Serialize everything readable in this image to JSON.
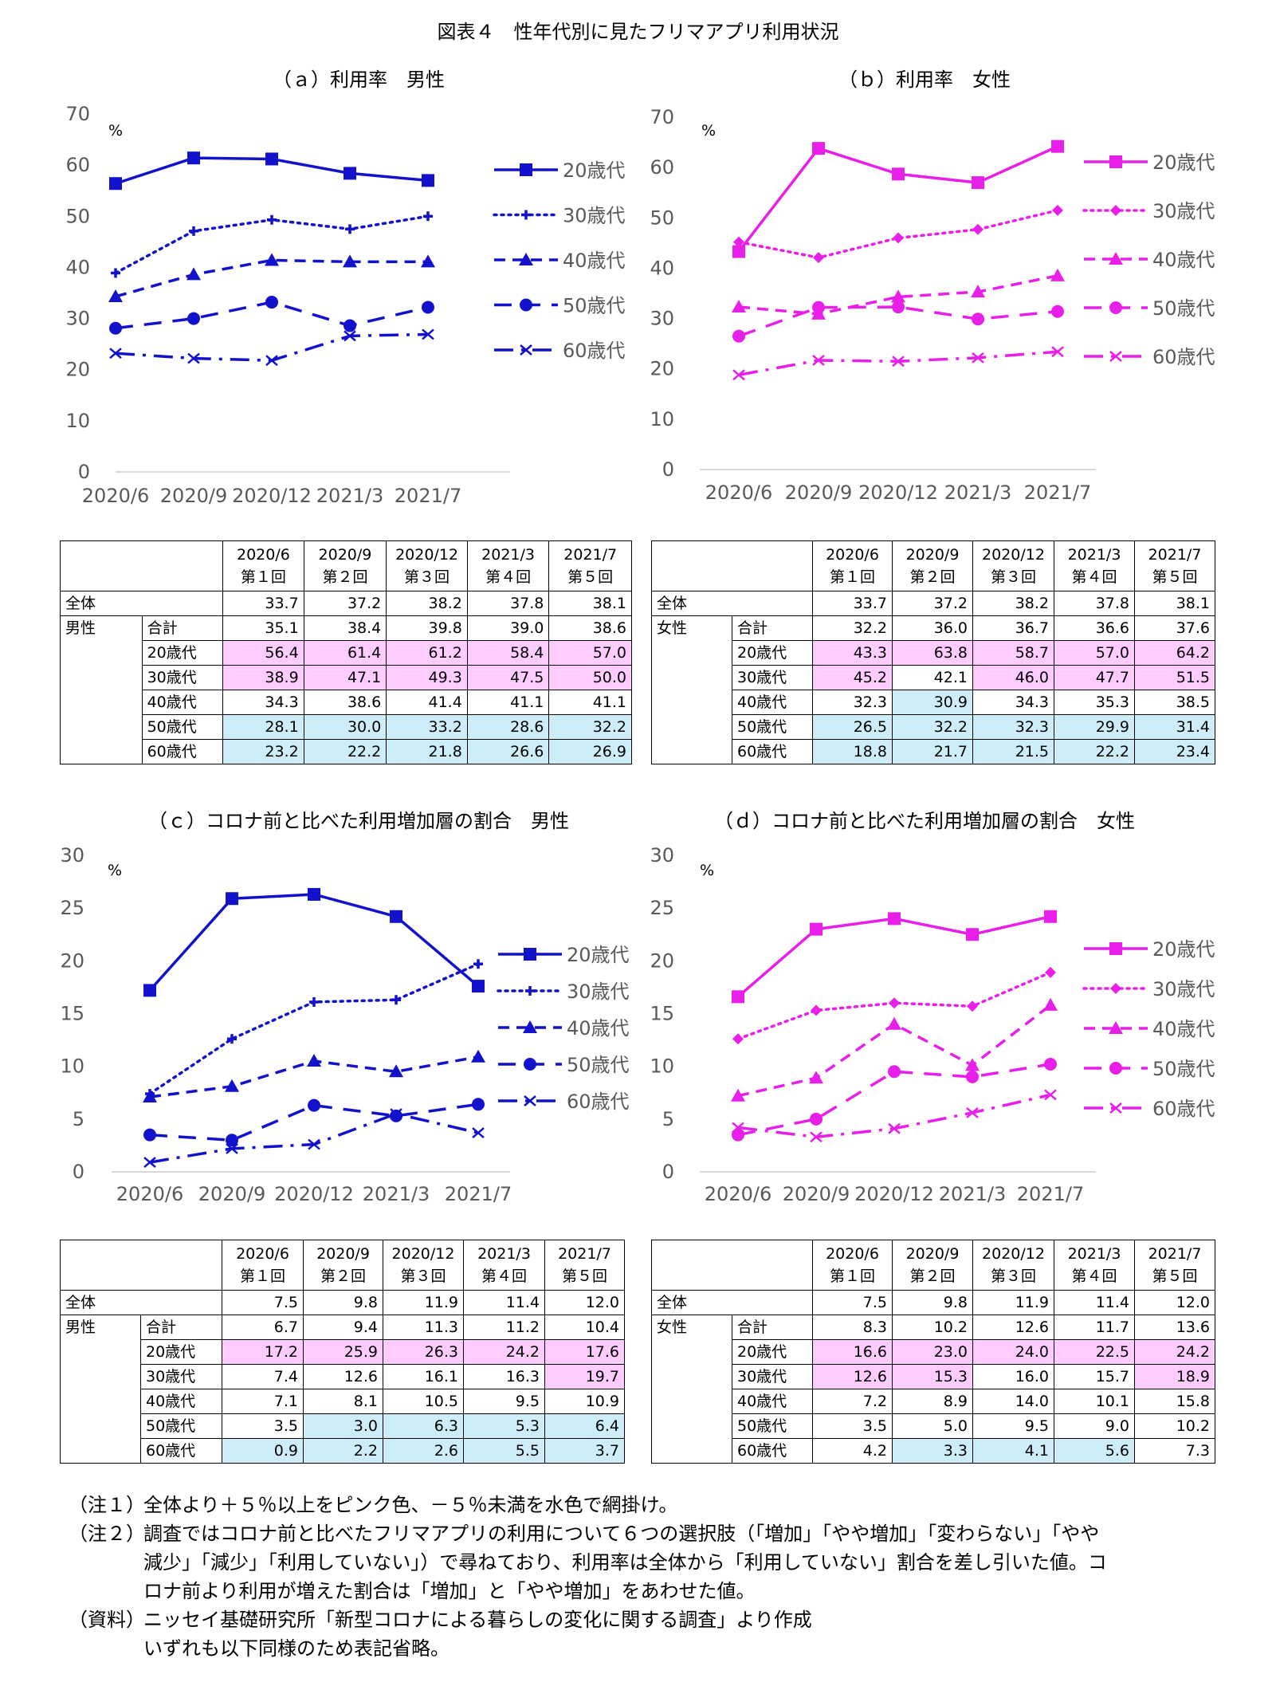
{
  "page_title": "図表４　性年代別に見たフリマアプリ利用状況",
  "colors": {
    "male": "#1212cc",
    "female": "#e81fe8",
    "pink": "#ffccff",
    "blue": "#cdeef8",
    "axis": "#d9d9d9",
    "tick": "#595959"
  },
  "chart_data": [
    {
      "type": "line",
      "title": "（ａ）利用率　男性",
      "ylabel": "%",
      "ylim": [
        0,
        70
      ],
      "yticks": [
        "0",
        "10",
        "20",
        "30",
        "40",
        "50",
        "60",
        "70"
      ],
      "categories": [
        "2020/6",
        "2020/9",
        "2020/12",
        "2021/3",
        "2021/7"
      ],
      "legend": "right",
      "color": "#1212cc",
      "series": [
        {
          "name": "20歳代",
          "marker": "square",
          "dash": "solid",
          "values": [
            56.4,
            61.4,
            61.2,
            58.4,
            57.0
          ]
        },
        {
          "name": "30歳代",
          "marker": "plus",
          "dash": "dot",
          "values": [
            38.9,
            47.1,
            49.3,
            47.5,
            50.0
          ]
        },
        {
          "name": "40歳代",
          "marker": "triangle",
          "dash": "dash",
          "values": [
            34.3,
            38.6,
            41.4,
            41.1,
            41.1
          ]
        },
        {
          "name": "50歳代",
          "marker": "circle",
          "dash": "longdash",
          "values": [
            28.1,
            30.0,
            33.2,
            28.6,
            32.2
          ]
        },
        {
          "name": "60歳代",
          "marker": "x",
          "dash": "dashdot",
          "values": [
            23.2,
            22.2,
            21.8,
            26.6,
            26.9
          ]
        }
      ]
    },
    {
      "type": "line",
      "title": "（ｂ）利用率　女性",
      "ylabel": "%",
      "ylim": [
        0,
        70
      ],
      "yticks": [
        "0",
        "10",
        "20",
        "30",
        "40",
        "50",
        "60",
        "70"
      ],
      "categories": [
        "2020/6",
        "2020/9",
        "2020/12",
        "2021/3",
        "2021/7"
      ],
      "legend": "right",
      "color": "#e81fe8",
      "series": [
        {
          "name": "20歳代",
          "marker": "square",
          "dash": "solid",
          "values": [
            43.3,
            63.8,
            58.7,
            57.0,
            64.2
          ]
        },
        {
          "name": "30歳代",
          "marker": "diamond",
          "dash": "dot",
          "values": [
            45.2,
            42.1,
            46.0,
            47.7,
            51.5
          ]
        },
        {
          "name": "40歳代",
          "marker": "triangle",
          "dash": "dash",
          "values": [
            32.3,
            30.9,
            34.3,
            35.3,
            38.5
          ]
        },
        {
          "name": "50歳代",
          "marker": "circle",
          "dash": "longdash",
          "values": [
            26.5,
            32.2,
            32.3,
            29.9,
            31.4
          ]
        },
        {
          "name": "60歳代",
          "marker": "x",
          "dash": "dashdot",
          "values": [
            18.8,
            21.7,
            21.5,
            22.2,
            23.4
          ]
        }
      ]
    },
    {
      "type": "line",
      "title": "（ｃ）コロナ前と比べた利用増加層の割合　男性",
      "ylabel": "%",
      "ylim": [
        0,
        30
      ],
      "yticks": [
        "0",
        "5",
        "10",
        "15",
        "20",
        "25",
        "30"
      ],
      "categories": [
        "2020/6",
        "2020/9",
        "2020/12",
        "2021/3",
        "2021/7"
      ],
      "legend": "right",
      "color": "#1212cc",
      "series": [
        {
          "name": "20歳代",
          "marker": "square",
          "dash": "solid",
          "values": [
            17.2,
            25.9,
            26.3,
            24.2,
            17.6
          ]
        },
        {
          "name": "30歳代",
          "marker": "plus",
          "dash": "dot",
          "values": [
            7.4,
            12.6,
            16.1,
            16.3,
            19.7
          ]
        },
        {
          "name": "40歳代",
          "marker": "triangle",
          "dash": "dash",
          "values": [
            7.1,
            8.1,
            10.5,
            9.5,
            10.9
          ]
        },
        {
          "name": "50歳代",
          "marker": "circle",
          "dash": "longdash",
          "values": [
            3.5,
            3.0,
            6.3,
            5.3,
            6.4
          ]
        },
        {
          "name": "60歳代",
          "marker": "x",
          "dash": "dashdot",
          "values": [
            0.9,
            2.2,
            2.6,
            5.5,
            3.7
          ]
        }
      ]
    },
    {
      "type": "line",
      "title": "（ｄ）コロナ前と比べた利用増加層の割合　女性",
      "ylabel": "%",
      "ylim": [
        0,
        30
      ],
      "yticks": [
        "0",
        "5",
        "10",
        "15",
        "20",
        "25",
        "30"
      ],
      "categories": [
        "2020/6",
        "2020/9",
        "2020/12",
        "2021/3",
        "2021/7"
      ],
      "legend": "right",
      "color": "#e81fe8",
      "series": [
        {
          "name": "20歳代",
          "marker": "square",
          "dash": "solid",
          "values": [
            16.6,
            23.0,
            24.0,
            22.5,
            24.2
          ]
        },
        {
          "name": "30歳代",
          "marker": "diamond",
          "dash": "dot",
          "values": [
            12.6,
            15.3,
            16.0,
            15.7,
            18.9
          ]
        },
        {
          "name": "40歳代",
          "marker": "triangle",
          "dash": "dash",
          "values": [
            7.2,
            8.9,
            14.0,
            10.1,
            15.8
          ]
        },
        {
          "name": "50歳代",
          "marker": "circle",
          "dash": "longdash",
          "values": [
            3.5,
            5.0,
            9.5,
            9.0,
            10.2
          ]
        },
        {
          "name": "60歳代",
          "marker": "x",
          "dash": "dashdot",
          "values": [
            4.2,
            3.3,
            4.1,
            5.6,
            7.3
          ]
        }
      ]
    }
  ],
  "tables": [
    {
      "header": [
        [
          "2020/6",
          "第１回"
        ],
        [
          "2020/9",
          "第２回"
        ],
        [
          "2020/12",
          "第３回"
        ],
        [
          "2021/3",
          "第４回"
        ],
        [
          "2021/7",
          "第５回"
        ]
      ],
      "overall_label": "全体",
      "overall": [
        "33.7",
        "37.2",
        "38.2",
        "37.8",
        "38.1"
      ],
      "group_label": "男性",
      "rows": [
        {
          "label": "合計",
          "values": [
            "35.1",
            "38.4",
            "39.8",
            "39.0",
            "38.6"
          ],
          "shade": [
            "",
            "",
            "",
            "",
            ""
          ]
        },
        {
          "label": "20歳代",
          "values": [
            "56.4",
            "61.4",
            "61.2",
            "58.4",
            "57.0"
          ],
          "shade": [
            "pink",
            "pink",
            "pink",
            "pink",
            "pink"
          ]
        },
        {
          "label": "30歳代",
          "values": [
            "38.9",
            "47.1",
            "49.3",
            "47.5",
            "50.0"
          ],
          "shade": [
            "pink",
            "pink",
            "pink",
            "pink",
            "pink"
          ]
        },
        {
          "label": "40歳代",
          "values": [
            "34.3",
            "38.6",
            "41.4",
            "41.1",
            "41.1"
          ],
          "shade": [
            "",
            "",
            "",
            "",
            ""
          ]
        },
        {
          "label": "50歳代",
          "values": [
            "28.1",
            "30.0",
            "33.2",
            "28.6",
            "32.2"
          ],
          "shade": [
            "blue",
            "blue",
            "blue",
            "blue",
            "blue"
          ]
        },
        {
          "label": "60歳代",
          "values": [
            "23.2",
            "22.2",
            "21.8",
            "26.6",
            "26.9"
          ],
          "shade": [
            "blue",
            "blue",
            "blue",
            "blue",
            "blue"
          ]
        }
      ]
    },
    {
      "header": [
        [
          "2020/6",
          "第１回"
        ],
        [
          "2020/9",
          "第２回"
        ],
        [
          "2020/12",
          "第３回"
        ],
        [
          "2021/3",
          "第４回"
        ],
        [
          "2021/7",
          "第５回"
        ]
      ],
      "overall_label": "全体",
      "overall": [
        "33.7",
        "37.2",
        "38.2",
        "37.8",
        "38.1"
      ],
      "group_label": "女性",
      "rows": [
        {
          "label": "合計",
          "values": [
            "32.2",
            "36.0",
            "36.7",
            "36.6",
            "37.6"
          ],
          "shade": [
            "",
            "",
            "",
            "",
            ""
          ]
        },
        {
          "label": "20歳代",
          "values": [
            "43.3",
            "63.8",
            "58.7",
            "57.0",
            "64.2"
          ],
          "shade": [
            "pink",
            "pink",
            "pink",
            "pink",
            "pink"
          ]
        },
        {
          "label": "30歳代",
          "values": [
            "45.2",
            "42.1",
            "46.0",
            "47.7",
            "51.5"
          ],
          "shade": [
            "pink",
            "",
            "pink",
            "pink",
            "pink"
          ]
        },
        {
          "label": "40歳代",
          "values": [
            "32.3",
            "30.9",
            "34.3",
            "35.3",
            "38.5"
          ],
          "shade": [
            "",
            "blue",
            "",
            "",
            ""
          ]
        },
        {
          "label": "50歳代",
          "values": [
            "26.5",
            "32.2",
            "32.3",
            "29.9",
            "31.4"
          ],
          "shade": [
            "blue",
            "blue",
            "blue",
            "blue",
            "blue"
          ]
        },
        {
          "label": "60歳代",
          "values": [
            "18.8",
            "21.7",
            "21.5",
            "22.2",
            "23.4"
          ],
          "shade": [
            "blue",
            "blue",
            "blue",
            "blue",
            "blue"
          ]
        }
      ]
    },
    {
      "header": [
        [
          "2020/6",
          "第１回"
        ],
        [
          "2020/9",
          "第２回"
        ],
        [
          "2020/12",
          "第３回"
        ],
        [
          "2021/3",
          "第４回"
        ],
        [
          "2021/7",
          "第５回"
        ]
      ],
      "overall_label": "全体",
      "overall": [
        "7.5",
        "9.8",
        "11.9",
        "11.4",
        "12.0"
      ],
      "group_label": "男性",
      "rows": [
        {
          "label": "合計",
          "values": [
            "6.7",
            "9.4",
            "11.3",
            "11.2",
            "10.4"
          ],
          "shade": [
            "",
            "",
            "",
            "",
            ""
          ]
        },
        {
          "label": "20歳代",
          "values": [
            "17.2",
            "25.9",
            "26.3",
            "24.2",
            "17.6"
          ],
          "shade": [
            "pink",
            "pink",
            "pink",
            "pink",
            "pink"
          ]
        },
        {
          "label": "30歳代",
          "values": [
            "7.4",
            "12.6",
            "16.1",
            "16.3",
            "19.7"
          ],
          "shade": [
            "",
            "",
            "",
            "",
            "pink"
          ]
        },
        {
          "label": "40歳代",
          "values": [
            "7.1",
            "8.1",
            "10.5",
            "9.5",
            "10.9"
          ],
          "shade": [
            "",
            "",
            "",
            "",
            ""
          ]
        },
        {
          "label": "50歳代",
          "values": [
            "3.5",
            "3.0",
            "6.3",
            "5.3",
            "6.4"
          ],
          "shade": [
            "",
            "blue",
            "blue",
            "blue",
            "blue"
          ]
        },
        {
          "label": "60歳代",
          "values": [
            "0.9",
            "2.2",
            "2.6",
            "5.5",
            "3.7"
          ],
          "shade": [
            "blue",
            "blue",
            "blue",
            "blue",
            "blue"
          ]
        }
      ]
    },
    {
      "header": [
        [
          "2020/6",
          "第１回"
        ],
        [
          "2020/9",
          "第２回"
        ],
        [
          "2020/12",
          "第３回"
        ],
        [
          "2021/3",
          "第４回"
        ],
        [
          "2021/7",
          "第５回"
        ]
      ],
      "overall_label": "全体",
      "overall": [
        "7.5",
        "9.8",
        "11.9",
        "11.4",
        "12.0"
      ],
      "group_label": "女性",
      "rows": [
        {
          "label": "合計",
          "values": [
            "8.3",
            "10.2",
            "12.6",
            "11.7",
            "13.6"
          ],
          "shade": [
            "",
            "",
            "",
            "",
            ""
          ]
        },
        {
          "label": "20歳代",
          "values": [
            "16.6",
            "23.0",
            "24.0",
            "22.5",
            "24.2"
          ],
          "shade": [
            "pink",
            "pink",
            "pink",
            "pink",
            "pink"
          ]
        },
        {
          "label": "30歳代",
          "values": [
            "12.6",
            "15.3",
            "16.0",
            "15.7",
            "18.9"
          ],
          "shade": [
            "pink",
            "pink",
            "",
            "",
            "pink"
          ]
        },
        {
          "label": "40歳代",
          "values": [
            "7.2",
            "8.9",
            "14.0",
            "10.1",
            "15.8"
          ],
          "shade": [
            "",
            "",
            "",
            "",
            ""
          ]
        },
        {
          "label": "50歳代",
          "values": [
            "3.5",
            "5.0",
            "9.5",
            "9.0",
            "10.2"
          ],
          "shade": [
            "",
            "",
            "",
            "",
            ""
          ]
        },
        {
          "label": "60歳代",
          "values": [
            "4.2",
            "3.3",
            "4.1",
            "5.6",
            "7.3"
          ],
          "shade": [
            "",
            "blue",
            "blue",
            "blue",
            ""
          ]
        }
      ]
    }
  ],
  "notes": [
    {
      "tag": "（注１）",
      "lines": [
        "全体より＋５％以上をピンク色、－５％未満を水色で網掛け。"
      ]
    },
    {
      "tag": "（注２）",
      "lines": [
        "調査ではコロナ前と比べたフリマアプリの利用について６つの選択肢（「増加」「やや増加」「変わらない」「やや",
        "減少」「減少」「利用していない」）で尋ねており、利用率は全体から「利用していない」割合を差し引いた値。コ",
        "ロナ前より利用が増えた割合は「増加」と「やや増加」をあわせた値。"
      ]
    },
    {
      "tag": "（資料）",
      "lines": [
        "ニッセイ基礎研究所「新型コロナによる暮らしの変化に関する調査」より作成",
        "いずれも以下同様のため表記省略。"
      ]
    }
  ]
}
